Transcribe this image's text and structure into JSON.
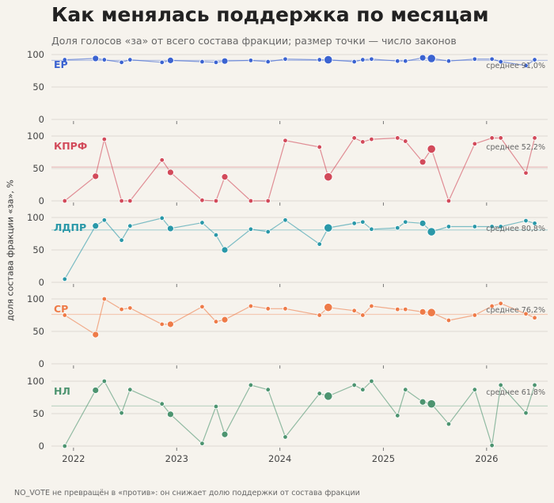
{
  "title": "Как менялась поддержка по месяцам",
  "subtitle": "Доля голосов «за» от всего состава фракции; размер точки — число законов",
  "ylabel": "доля состава фракции «за», %",
  "footnote": "NO_VOTE не превращён в «против»: он снижает долю поддержки от состава фракции",
  "chart_data": {
    "type": "scatter",
    "x_type": "date",
    "x_ticks": [
      "2022",
      "2023",
      "2024",
      "2025",
      "2026"
    ],
    "xlim": [
      "2021-10-15",
      "2026-08-05"
    ],
    "ylim": [
      0,
      100
    ],
    "y_ticks": [
      0,
      50,
      100
    ],
    "mean_label_prefix": "среднее",
    "panels": [
      {
        "name": "ЕР",
        "color": "#3b63d1",
        "mean": 91.0,
        "mean_label": "91,0%",
        "points": [
          [
            "2021-12-01",
            92,
            1
          ],
          [
            "2022-03-20",
            94,
            2
          ],
          [
            "2022-04-20",
            92,
            1
          ],
          [
            "2022-06-20",
            88,
            1
          ],
          [
            "2022-07-20",
            92,
            1
          ],
          [
            "2022-11-10",
            88,
            1
          ],
          [
            "2022-12-10",
            91,
            2
          ],
          [
            "2023-04-01",
            89,
            1
          ],
          [
            "2023-05-20",
            88,
            1
          ],
          [
            "2023-06-20",
            90,
            2
          ],
          [
            "2023-09-20",
            91,
            1
          ],
          [
            "2023-11-20",
            89,
            1
          ],
          [
            "2024-01-20",
            93,
            1
          ],
          [
            "2024-05-20",
            92,
            1
          ],
          [
            "2024-06-20",
            92,
            3
          ],
          [
            "2024-09-20",
            89,
            1
          ],
          [
            "2024-10-20",
            92,
            1
          ],
          [
            "2024-11-20",
            93,
            1
          ],
          [
            "2025-02-20",
            90,
            1
          ],
          [
            "2025-03-20",
            90,
            1
          ],
          [
            "2025-05-20",
            95,
            2
          ],
          [
            "2025-06-20",
            94,
            3
          ],
          [
            "2025-08-20",
            90,
            1
          ],
          [
            "2025-11-20",
            93,
            1
          ],
          [
            "2026-01-20",
            93,
            1
          ],
          [
            "2026-02-20",
            89,
            1
          ],
          [
            "2026-05-20",
            83,
            1
          ],
          [
            "2026-06-20",
            92,
            1
          ]
        ]
      },
      {
        "name": "КПРФ",
        "color": "#d24a5a",
        "mean": 52.2,
        "mean_label": "52,2%",
        "points": [
          [
            "2021-12-01",
            0,
            1
          ],
          [
            "2022-03-20",
            38,
            2
          ],
          [
            "2022-04-20",
            95,
            1
          ],
          [
            "2022-06-20",
            0,
            1
          ],
          [
            "2022-07-20",
            0,
            1
          ],
          [
            "2022-11-10",
            63,
            1
          ],
          [
            "2022-12-10",
            44,
            2
          ],
          [
            "2023-04-01",
            1,
            1
          ],
          [
            "2023-05-20",
            0,
            1
          ],
          [
            "2023-06-20",
            37,
            2
          ],
          [
            "2023-09-20",
            0,
            1
          ],
          [
            "2023-11-20",
            0,
            1
          ],
          [
            "2024-01-20",
            93,
            1
          ],
          [
            "2024-05-20",
            83,
            1
          ],
          [
            "2024-06-20",
            37,
            3
          ],
          [
            "2024-09-20",
            97,
            1
          ],
          [
            "2024-10-20",
            91,
            1
          ],
          [
            "2024-11-20",
            95,
            1
          ],
          [
            "2025-02-20",
            97,
            1
          ],
          [
            "2025-03-20",
            92,
            1
          ],
          [
            "2025-05-20",
            60,
            2
          ],
          [
            "2025-06-20",
            80,
            3
          ],
          [
            "2025-08-20",
            0,
            1
          ],
          [
            "2025-11-20",
            88,
            1
          ],
          [
            "2026-01-20",
            97,
            1
          ],
          [
            "2026-02-20",
            97,
            1
          ],
          [
            "2026-05-20",
            43,
            1
          ],
          [
            "2026-06-20",
            97,
            1
          ]
        ]
      },
      {
        "name": "ЛДПР",
        "color": "#2a98a8",
        "mean": 80.8,
        "mean_label": "80,8%",
        "points": [
          [
            "2021-12-01",
            5,
            1
          ],
          [
            "2022-03-20",
            87,
            2
          ],
          [
            "2022-04-20",
            96,
            1
          ],
          [
            "2022-06-20",
            65,
            1
          ],
          [
            "2022-07-20",
            87,
            1
          ],
          [
            "2022-11-10",
            99,
            1
          ],
          [
            "2022-12-10",
            83,
            2
          ],
          [
            "2023-04-01",
            92,
            1
          ],
          [
            "2023-05-20",
            73,
            1
          ],
          [
            "2023-06-20",
            50,
            2
          ],
          [
            "2023-09-20",
            82,
            1
          ],
          [
            "2023-11-20",
            78,
            1
          ],
          [
            "2024-01-20",
            96,
            1
          ],
          [
            "2024-05-20",
            59,
            1
          ],
          [
            "2024-06-20",
            84,
            3
          ],
          [
            "2024-09-20",
            91,
            1
          ],
          [
            "2024-10-20",
            93,
            1
          ],
          [
            "2024-11-20",
            82,
            1
          ],
          [
            "2025-02-20",
            84,
            1
          ],
          [
            "2025-03-20",
            93,
            1
          ],
          [
            "2025-05-20",
            91,
            2
          ],
          [
            "2025-06-20",
            78,
            3
          ],
          [
            "2025-08-20",
            86,
            1
          ],
          [
            "2025-11-20",
            86,
            1
          ],
          [
            "2026-01-20",
            86,
            1
          ],
          [
            "2026-02-20",
            86,
            1
          ],
          [
            "2026-05-20",
            95,
            1
          ],
          [
            "2026-06-20",
            91,
            1
          ]
        ]
      },
      {
        "name": "СР",
        "color": "#ee7b48",
        "mean": 76.2,
        "mean_label": "76,2%",
        "points": [
          [
            "2021-12-01",
            75,
            1
          ],
          [
            "2022-03-20",
            45,
            2
          ],
          [
            "2022-04-20",
            100,
            1
          ],
          [
            "2022-06-20",
            84,
            1
          ],
          [
            "2022-07-20",
            86,
            1
          ],
          [
            "2022-11-10",
            61,
            1
          ],
          [
            "2022-12-10",
            61,
            2
          ],
          [
            "2023-04-01",
            88,
            1
          ],
          [
            "2023-05-20",
            65,
            1
          ],
          [
            "2023-06-20",
            68,
            2
          ],
          [
            "2023-09-20",
            89,
            1
          ],
          [
            "2023-11-20",
            85,
            1
          ],
          [
            "2024-01-20",
            85,
            1
          ],
          [
            "2024-05-20",
            75,
            1
          ],
          [
            "2024-06-20",
            87,
            3
          ],
          [
            "2024-09-20",
            82,
            1
          ],
          [
            "2024-10-20",
            75,
            1
          ],
          [
            "2024-11-20",
            89,
            1
          ],
          [
            "2025-02-20",
            84,
            1
          ],
          [
            "2025-03-20",
            84,
            1
          ],
          [
            "2025-05-20",
            80,
            2
          ],
          [
            "2025-06-20",
            79,
            3
          ],
          [
            "2025-08-20",
            67,
            1
          ],
          [
            "2025-11-20",
            75,
            1
          ],
          [
            "2026-01-20",
            89,
            1
          ],
          [
            "2026-02-20",
            93,
            1
          ],
          [
            "2026-05-20",
            77,
            1
          ],
          [
            "2026-06-20",
            71,
            1
          ]
        ]
      },
      {
        "name": "НЛ",
        "color": "#4d9470",
        "mean": 61.8,
        "mean_label": "61,8%",
        "points": [
          [
            "2021-12-01",
            0,
            1
          ],
          [
            "2022-03-20",
            86,
            2
          ],
          [
            "2022-04-20",
            100,
            1
          ],
          [
            "2022-06-20",
            51,
            1
          ],
          [
            "2022-07-20",
            87,
            1
          ],
          [
            "2022-11-10",
            65,
            1
          ],
          [
            "2022-12-10",
            49,
            2
          ],
          [
            "2023-04-01",
            4,
            1
          ],
          [
            "2023-05-20",
            61,
            1
          ],
          [
            "2023-06-20",
            18,
            2
          ],
          [
            "2023-09-20",
            94,
            1
          ],
          [
            "2023-11-20",
            87,
            1
          ],
          [
            "2024-01-20",
            14,
            1
          ],
          [
            "2024-05-20",
            81,
            1
          ],
          [
            "2024-06-20",
            77,
            3
          ],
          [
            "2024-09-20",
            94,
            1
          ],
          [
            "2024-10-20",
            87,
            1
          ],
          [
            "2024-11-20",
            100,
            1
          ],
          [
            "2025-02-20",
            47,
            1
          ],
          [
            "2025-03-20",
            87,
            1
          ],
          [
            "2025-05-20",
            68,
            2
          ],
          [
            "2025-06-20",
            65,
            3
          ],
          [
            "2025-08-20",
            34,
            1
          ],
          [
            "2025-11-20",
            87,
            1
          ],
          [
            "2026-01-20",
            1,
            1
          ],
          [
            "2026-02-20",
            94,
            1
          ],
          [
            "2026-05-20",
            51,
            1
          ],
          [
            "2026-06-20",
            94,
            1
          ]
        ]
      }
    ]
  }
}
